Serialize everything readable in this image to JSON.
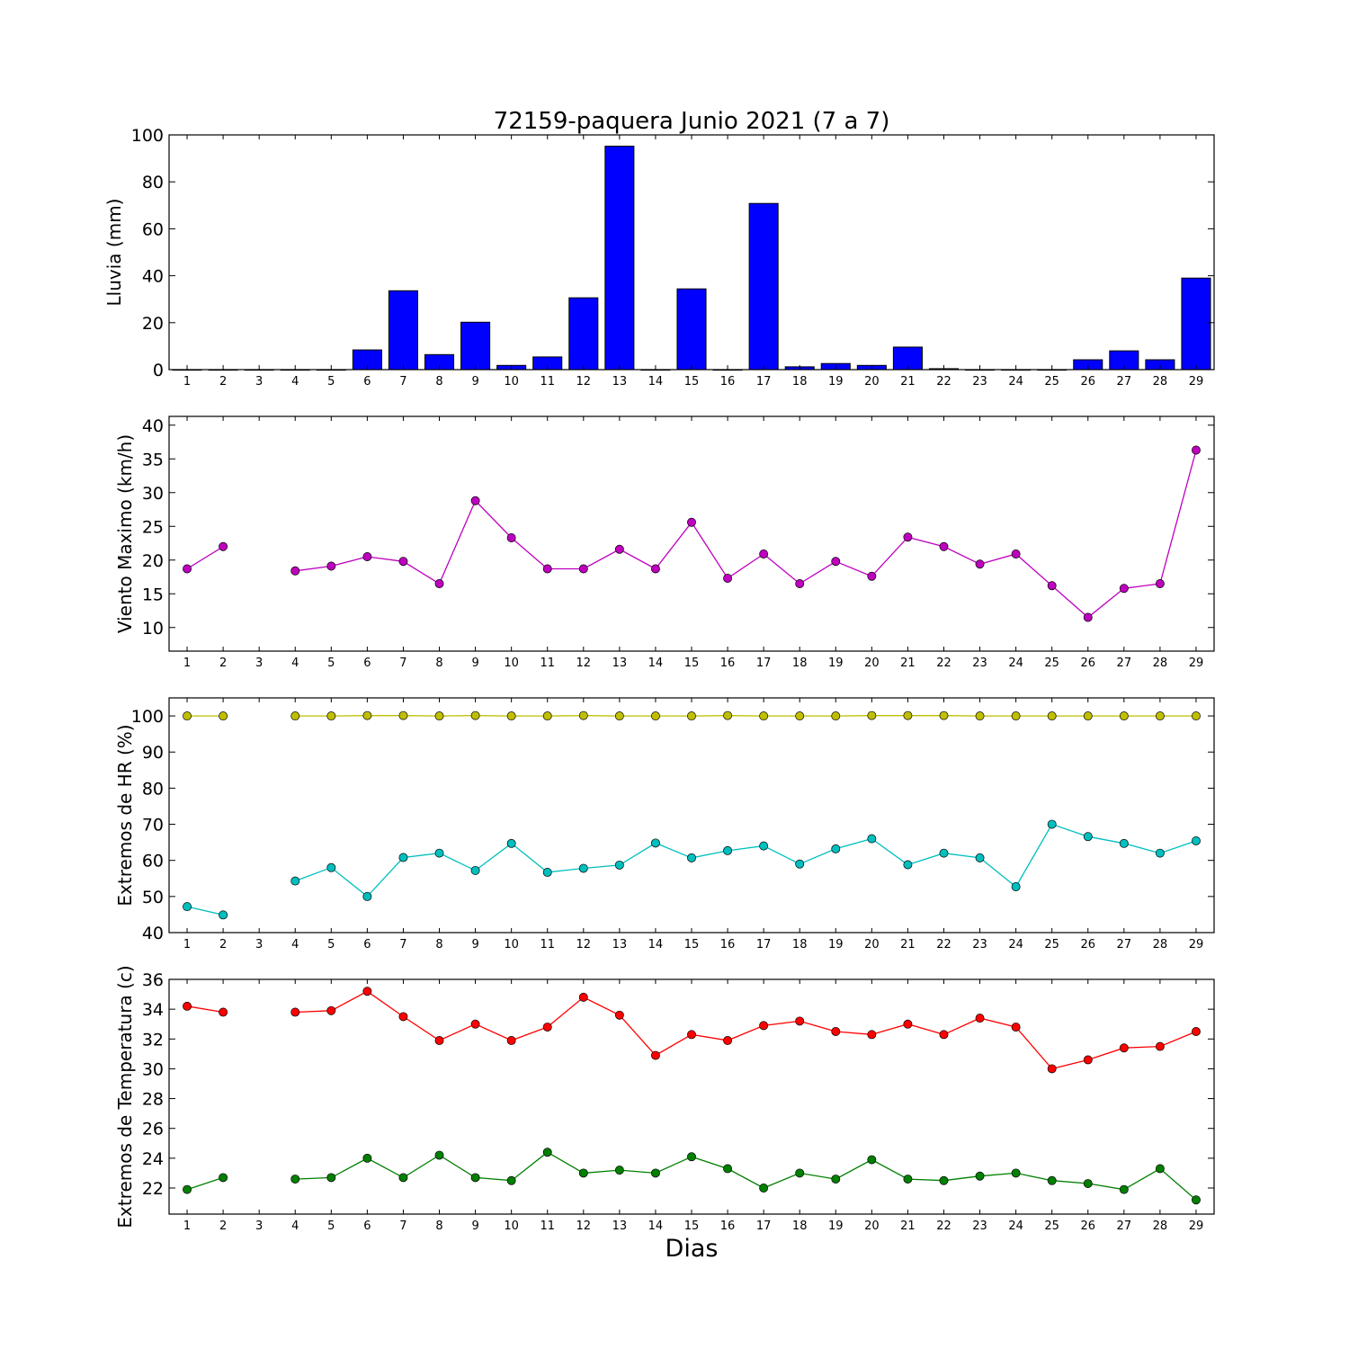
{
  "chart_data": [
    {
      "type": "bar",
      "title": "72159-paquera Junio 2021  (7 a 7)",
      "ylabel": "Lluvia (mm)",
      "xlabel": "",
      "ylim": [
        0,
        100
      ],
      "yticks": [
        0,
        20,
        40,
        60,
        80,
        100
      ],
      "xlim": [
        0.5,
        29.5
      ],
      "categories": [
        "1",
        "2",
        "3",
        "4",
        "5",
        "6",
        "7",
        "8",
        "9",
        "10",
        "11",
        "12",
        "13",
        "14",
        "15",
        "16",
        "17",
        "18",
        "19",
        "20",
        "21",
        "22",
        "23",
        "24",
        "25",
        "26",
        "27",
        "28",
        "29"
      ],
      "values": [
        0,
        0,
        0,
        0,
        0,
        8.4,
        33.6,
        6.4,
        20.2,
        1.8,
        5.4,
        30.6,
        95.2,
        0,
        34.4,
        0,
        70.8,
        1.2,
        2.6,
        1.8,
        9.6,
        0.4,
        0,
        0,
        0,
        4.2,
        8.0,
        4.2,
        39.0
      ],
      "colors": {
        "bar": "#0000ff"
      }
    },
    {
      "type": "line",
      "ylabel": "Viento Maximo (km/h)",
      "ylim": [
        6.5,
        41.3
      ],
      "yticks": [
        10,
        15,
        20,
        25,
        30,
        35,
        40
      ],
      "xlim": [
        0.5,
        29.5
      ],
      "categories": [
        "1",
        "2",
        "3",
        "4",
        "5",
        "6",
        "7",
        "8",
        "9",
        "10",
        "11",
        "12",
        "13",
        "14",
        "15",
        "16",
        "17",
        "18",
        "19",
        "20",
        "21",
        "22",
        "23",
        "24",
        "25",
        "26",
        "27",
        "28",
        "29"
      ],
      "series": [
        {
          "color": "#bf00bf",
          "values": [
            18.7,
            22.0,
            null,
            18.4,
            19.1,
            20.5,
            19.8,
            16.5,
            28.8,
            23.3,
            18.7,
            18.7,
            21.6,
            18.7,
            25.6,
            17.3,
            20.9,
            16.5,
            19.8,
            17.6,
            23.4,
            22.0,
            19.4,
            20.9,
            16.2,
            11.5,
            15.8,
            16.5,
            36.3
          ]
        }
      ]
    },
    {
      "type": "line",
      "ylabel": "Extremos de HR (%)",
      "ylim": [
        40,
        105
      ],
      "yticks": [
        40,
        50,
        60,
        70,
        80,
        90,
        100
      ],
      "xlim": [
        0.5,
        29.5
      ],
      "categories": [
        "1",
        "2",
        "3",
        "4",
        "5",
        "6",
        "7",
        "8",
        "9",
        "10",
        "11",
        "12",
        "13",
        "14",
        "15",
        "16",
        "17",
        "18",
        "19",
        "20",
        "21",
        "22",
        "23",
        "24",
        "25",
        "26",
        "27",
        "28",
        "29"
      ],
      "series": [
        {
          "color": "#bfbf00",
          "values": [
            100,
            100,
            null,
            100,
            100,
            100.1,
            100.1,
            100,
            100.1,
            100,
            100,
            100.1,
            100,
            100,
            100,
            100.1,
            100,
            100,
            100,
            100.1,
            100.1,
            100.1,
            100,
            100,
            100,
            100,
            100,
            100,
            100
          ]
        },
        {
          "color": "#00bfbf",
          "values": [
            47.2,
            44.9,
            null,
            54.3,
            58.0,
            50.0,
            60.8,
            62.0,
            57.2,
            64.7,
            56.7,
            57.8,
            58.7,
            64.8,
            60.7,
            62.7,
            64.0,
            59.0,
            63.2,
            66.0,
            58.8,
            62.0,
            60.7,
            52.7,
            70.0,
            66.6,
            64.7,
            62.0,
            65.4
          ]
        }
      ]
    },
    {
      "type": "line",
      "ylabel": "Extremos de Temperatura (c)",
      "ylim": [
        20.25,
        36.0
      ],
      "yticks": [
        22,
        24,
        26,
        28,
        30,
        32,
        34,
        36
      ],
      "xlim": [
        0.5,
        29.5
      ],
      "categories": [
        "1",
        "2",
        "3",
        "4",
        "5",
        "6",
        "7",
        "8",
        "9",
        "10",
        "11",
        "12",
        "13",
        "14",
        "15",
        "16",
        "17",
        "18",
        "19",
        "20",
        "21",
        "22",
        "23",
        "24",
        "25",
        "26",
        "27",
        "28",
        "29"
      ],
      "xlabel": "Dias",
      "series": [
        {
          "color": "#ff0000",
          "values": [
            34.2,
            33.8,
            null,
            33.8,
            33.9,
            35.2,
            33.5,
            31.9,
            33.0,
            31.9,
            32.8,
            34.8,
            33.6,
            30.9,
            32.3,
            31.9,
            32.9,
            33.2,
            32.5,
            32.3,
            33.0,
            32.3,
            33.4,
            32.8,
            30.0,
            30.6,
            31.4,
            31.5,
            32.5
          ]
        },
        {
          "color": "#008000",
          "values": [
            21.9,
            22.7,
            null,
            22.6,
            22.7,
            24.0,
            22.7,
            24.2,
            22.7,
            22.5,
            24.4,
            23.0,
            23.2,
            23.0,
            24.1,
            23.3,
            22.0,
            23.0,
            22.6,
            23.9,
            22.6,
            22.5,
            22.8,
            23.0,
            22.5,
            22.3,
            21.9,
            23.3,
            21.2
          ]
        }
      ]
    }
  ]
}
